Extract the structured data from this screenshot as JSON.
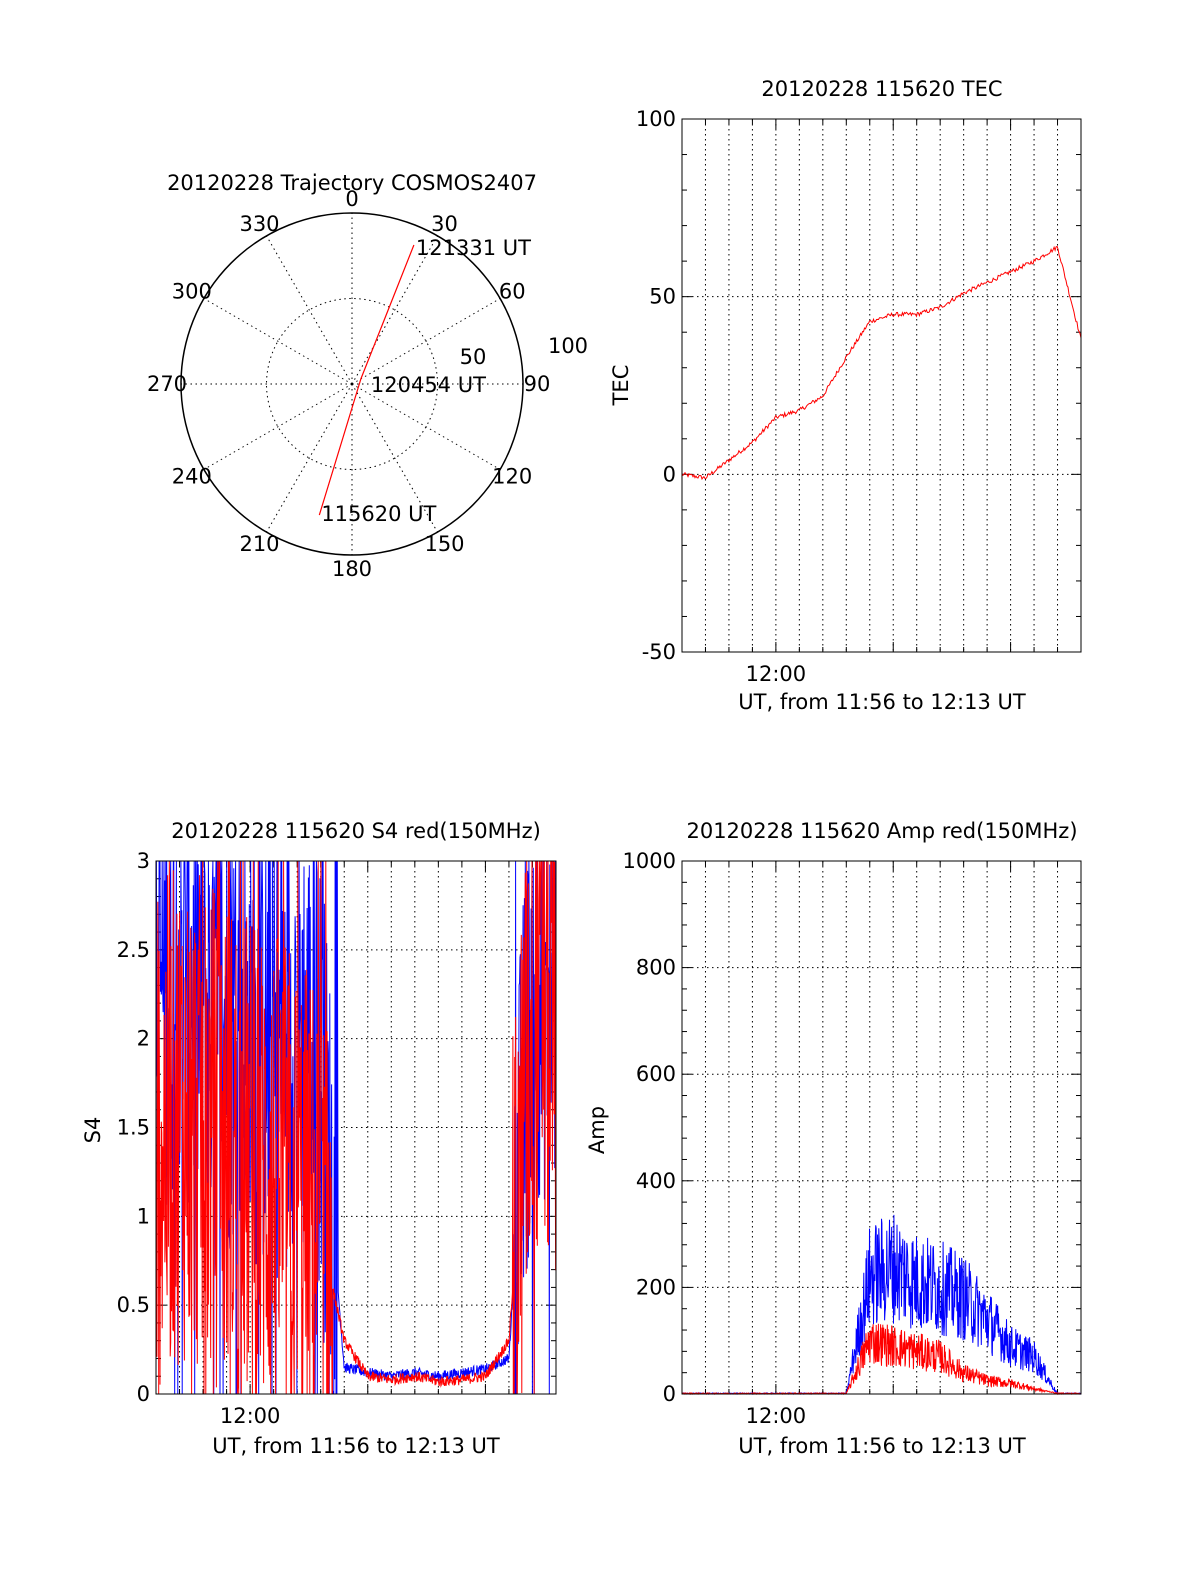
{
  "chart_data": [
    {
      "type": "polar-trajectory",
      "title": "20120228 Trajectory COSMOS2407",
      "azimuth_labels": [
        "0",
        "30",
        "60",
        "90",
        "120",
        "150",
        "180",
        "210",
        "240",
        "270",
        "300",
        "330"
      ],
      "radial_labels": [
        "50",
        "100"
      ],
      "track_color": "#ff0000",
      "track": [
        {
          "az": 194,
          "r": 79,
          "label": "115620 UT"
        },
        {
          "az": 60,
          "r": 6,
          "label": "120454 UT"
        },
        {
          "az": 24,
          "r": 89,
          "label": "121331 UT"
        }
      ]
    },
    {
      "type": "line",
      "title": "20120228 115620 TEC",
      "xlabel": "UT, from 11:56 to 12:13 UT",
      "ylabel": "TEC",
      "x_tick_labels": [
        "12:00"
      ],
      "y_tick_labels": [
        "-50",
        "0",
        "50",
        "100"
      ],
      "xlim": [
        "11:56",
        "12:13"
      ],
      "ylim": [
        -50,
        100
      ],
      "series": [
        {
          "color": "#ff0000",
          "x": [
            "11:56",
            "11:57",
            "11:58",
            "11:59",
            "12:00",
            "12:01",
            "12:02",
            "12:03",
            "12:04",
            "12:05",
            "12:06",
            "12:07",
            "12:08",
            "12:09",
            "12:10",
            "12:11",
            "12:12",
            "12:13"
          ],
          "y": [
            0,
            -1,
            4,
            9,
            16,
            18,
            22,
            33,
            43,
            45,
            45,
            47,
            51,
            54,
            57,
            60,
            64,
            38
          ]
        }
      ]
    },
    {
      "type": "line",
      "title": "20120228 115620 S4 red(150MHz)",
      "xlabel": "UT, from 11:56 to 12:13 UT",
      "ylabel": "S4",
      "x_tick_labels": [
        "12:00"
      ],
      "y_tick_labels": [
        "0",
        "0.5",
        "1",
        "1.5",
        "2",
        "2.5",
        "3"
      ],
      "xlim": [
        "11:56",
        "12:13"
      ],
      "ylim": [
        0,
        3
      ],
      "series": [
        {
          "color": "#0000ff",
          "x": [
            "11:56",
            "11:57",
            "11:58",
            "11:59",
            "12:00",
            "12:01",
            "12:02",
            "12:03",
            "12:04",
            "12:05",
            "12:06",
            "12:07",
            "12:08",
            "12:09",
            "12:10",
            "12:11",
            "12:12",
            "12:13"
          ],
          "y": [
            2.3,
            2.4,
            2.2,
            2.1,
            2.0,
            1.9,
            2.1,
            1.8,
            0.15,
            0.12,
            0.1,
            0.12,
            0.1,
            0.12,
            0.14,
            0.2,
            2.4,
            2.3
          ]
        },
        {
          "color": "#ff0000",
          "x": [
            "11:56",
            "11:57",
            "11:58",
            "11:59",
            "12:00",
            "12:01",
            "12:02",
            "12:03",
            "12:04",
            "12:05",
            "12:06",
            "12:07",
            "12:08",
            "12:09",
            "12:10",
            "12:11",
            "12:12",
            "12:13"
          ],
          "y": [
            1.4,
            1.6,
            1.5,
            1.4,
            1.3,
            1.2,
            1.1,
            0.9,
            0.3,
            0.1,
            0.08,
            0.1,
            0.07,
            0.08,
            0.1,
            0.3,
            2.2,
            2.0
          ]
        }
      ]
    },
    {
      "type": "line",
      "title": "20120228 115620 Amp red(150MHz)",
      "xlabel": "UT, from 11:56 to 12:13 UT",
      "ylabel": "Amp",
      "x_tick_labels": [
        "12:00"
      ],
      "y_tick_labels": [
        "0",
        "200",
        "400",
        "600",
        "800",
        "1000"
      ],
      "xlim": [
        "11:56",
        "12:13"
      ],
      "ylim": [
        0,
        1000
      ],
      "series": [
        {
          "color": "#0000ff",
          "x": [
            "11:56",
            "11:57",
            "11:58",
            "11:59",
            "12:00",
            "12:01",
            "12:02",
            "12:03",
            "12:04",
            "12:05",
            "12:06",
            "12:07",
            "12:08",
            "12:09",
            "12:10",
            "12:11",
            "12:12",
            "12:13"
          ],
          "y": [
            0,
            0,
            0,
            0,
            0,
            0,
            0,
            0,
            220,
            240,
            210,
            200,
            180,
            140,
            90,
            70,
            0,
            0
          ]
        },
        {
          "color": "#ff0000",
          "x": [
            "11:56",
            "11:57",
            "11:58",
            "11:59",
            "12:00",
            "12:01",
            "12:02",
            "12:03",
            "12:04",
            "12:05",
            "12:06",
            "12:07",
            "12:08",
            "12:09",
            "12:10",
            "12:11",
            "12:12",
            "12:13"
          ],
          "y": [
            0,
            0,
            0,
            0,
            0,
            0,
            0,
            0,
            100,
            90,
            80,
            70,
            40,
            25,
            20,
            10,
            0,
            0
          ]
        }
      ]
    }
  ]
}
